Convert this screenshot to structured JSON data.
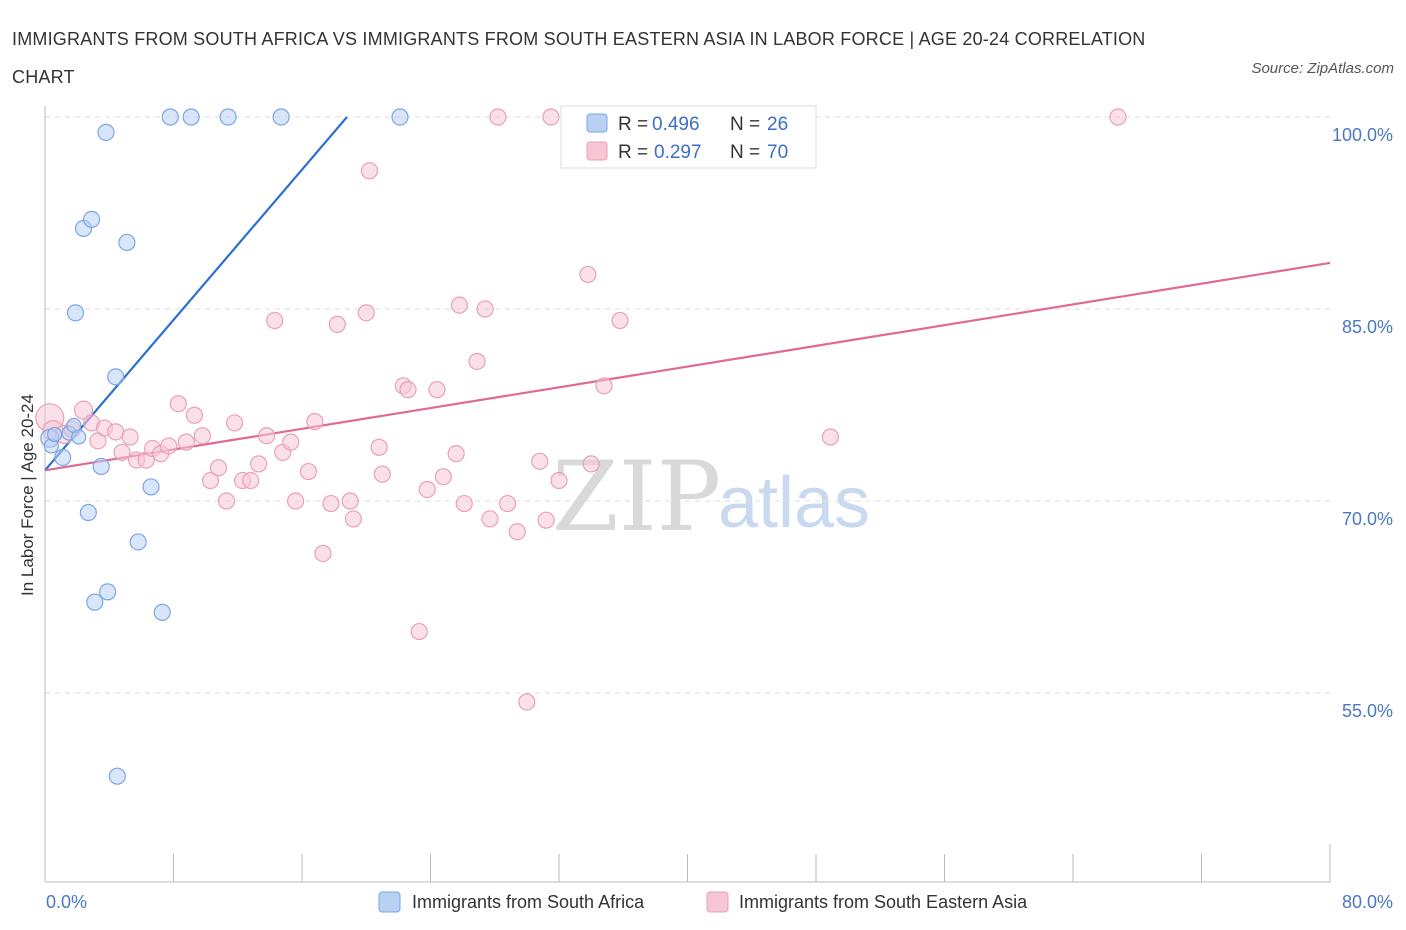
{
  "title": "IMMIGRANTS FROM SOUTH AFRICA VS IMMIGRANTS FROM SOUTH EASTERN ASIA IN LABOR FORCE | AGE 20-24 CORRELATION CHART",
  "source": "Source: ZipAtlas.com",
  "watermark": {
    "zip": "ZIP",
    "atlas": "atlas"
  },
  "chart_data": {
    "type": "scatter",
    "title": "IMMIGRANTS FROM SOUTH AFRICA VS IMMIGRANTS FROM SOUTH EASTERN ASIA IN LABOR FORCE | AGE 20-24 CORRELATION CHART",
    "xlabel": "",
    "ylabel": "In Labor Force | Age 20-24",
    "xlim": [
      0,
      80
    ],
    "ylim": [
      40,
      101
    ],
    "x_tick_labels": [
      {
        "value": 0,
        "label": "0.0%"
      },
      {
        "value": 80,
        "label": "80.0%"
      }
    ],
    "y_ticks": [
      {
        "value": 100,
        "label": "100.0%"
      },
      {
        "value": 85,
        "label": "85.0%"
      },
      {
        "value": 70,
        "label": "70.0%"
      },
      {
        "value": 55,
        "label": "55.0%"
      }
    ],
    "grid": true,
    "legend": {
      "position": "top-center",
      "entries": [
        {
          "r_label": "R = ",
          "r_value": "0.496",
          "n_label": "N = ",
          "n_value": "26"
        },
        {
          "r_label": "R = ",
          "r_value": "0.297",
          "n_label": "N = ",
          "n_value": "70"
        }
      ]
    },
    "series": [
      {
        "name": "Immigrants from South Africa",
        "color": "#7aa6e6",
        "fill": "#b9d0f3",
        "line_color": "#2a6fd1",
        "trend": {
          "x": [
            0.0,
            18.8
          ],
          "y": [
            72.4,
            100.0
          ]
        },
        "points": [
          {
            "x": 0.3,
            "y": 74.9,
            "r": 9
          },
          {
            "x": 0.4,
            "y": 74.3,
            "r": 7
          },
          {
            "x": 0.6,
            "y": 75.2,
            "r": 7
          },
          {
            "x": 1.1,
            "y": 73.4,
            "r": 8
          },
          {
            "x": 1.5,
            "y": 75.3,
            "r": 7
          },
          {
            "x": 1.8,
            "y": 75.9,
            "r": 7
          },
          {
            "x": 2.1,
            "y": 75.0,
            "r": 7
          },
          {
            "x": 1.9,
            "y": 84.7,
            "r": 8
          },
          {
            "x": 2.4,
            "y": 91.3,
            "r": 8
          },
          {
            "x": 2.9,
            "y": 92.0,
            "r": 8
          },
          {
            "x": 3.8,
            "y": 98.8,
            "r": 8
          },
          {
            "x": 5.1,
            "y": 90.2,
            "r": 8
          },
          {
            "x": 4.4,
            "y": 79.7,
            "r": 8
          },
          {
            "x": 3.5,
            "y": 72.7,
            "r": 8
          },
          {
            "x": 2.7,
            "y": 69.1,
            "r": 8
          },
          {
            "x": 6.6,
            "y": 71.1,
            "r": 8
          },
          {
            "x": 5.8,
            "y": 66.8,
            "r": 8
          },
          {
            "x": 3.9,
            "y": 62.9,
            "r": 8
          },
          {
            "x": 3.1,
            "y": 62.1,
            "r": 8
          },
          {
            "x": 7.3,
            "y": 61.3,
            "r": 8
          },
          {
            "x": 4.5,
            "y": 48.5,
            "r": 8
          },
          {
            "x": 7.8,
            "y": 100.0,
            "r": 8
          },
          {
            "x": 9.1,
            "y": 100.0,
            "r": 8
          },
          {
            "x": 11.4,
            "y": 100.0,
            "r": 8
          },
          {
            "x": 14.7,
            "y": 100.0,
            "r": 8
          },
          {
            "x": 22.1,
            "y": 100.0,
            "r": 8
          }
        ]
      },
      {
        "name": "Immigrants from South Eastern Asia",
        "color": "#eaa0b8",
        "fill": "#f6c6d5",
        "line_color": "#e06994",
        "trend": {
          "x": [
            0.0,
            80.0
          ],
          "y": [
            72.4,
            88.6
          ]
        },
        "points": [
          {
            "x": 0.3,
            "y": 76.5,
            "r": 14
          },
          {
            "x": 0.5,
            "y": 75.5,
            "r": 10
          },
          {
            "x": 1.2,
            "y": 75.2,
            "r": 9
          },
          {
            "x": 1.7,
            "y": 75.6,
            "r": 8
          },
          {
            "x": 2.4,
            "y": 77.1,
            "r": 9
          },
          {
            "x": 2.9,
            "y": 76.1,
            "r": 8
          },
          {
            "x": 3.3,
            "y": 74.7,
            "r": 8
          },
          {
            "x": 3.7,
            "y": 75.7,
            "r": 8
          },
          {
            "x": 4.4,
            "y": 75.4,
            "r": 8
          },
          {
            "x": 4.8,
            "y": 73.8,
            "r": 8
          },
          {
            "x": 5.3,
            "y": 75.0,
            "r": 8
          },
          {
            "x": 5.7,
            "y": 73.2,
            "r": 8
          },
          {
            "x": 6.3,
            "y": 73.2,
            "r": 8
          },
          {
            "x": 6.7,
            "y": 74.1,
            "r": 8
          },
          {
            "x": 7.2,
            "y": 73.7,
            "r": 8
          },
          {
            "x": 7.7,
            "y": 74.3,
            "r": 8
          },
          {
            "x": 8.3,
            "y": 77.6,
            "r": 8
          },
          {
            "x": 8.8,
            "y": 74.6,
            "r": 8
          },
          {
            "x": 9.3,
            "y": 76.7,
            "r": 8
          },
          {
            "x": 9.8,
            "y": 75.1,
            "r": 8
          },
          {
            "x": 10.3,
            "y": 71.6,
            "r": 8
          },
          {
            "x": 10.8,
            "y": 72.6,
            "r": 8
          },
          {
            "x": 11.3,
            "y": 70.0,
            "r": 8
          },
          {
            "x": 11.8,
            "y": 76.1,
            "r": 8
          },
          {
            "x": 12.3,
            "y": 71.6,
            "r": 8
          },
          {
            "x": 12.8,
            "y": 71.6,
            "r": 8
          },
          {
            "x": 13.3,
            "y": 72.9,
            "r": 8
          },
          {
            "x": 13.8,
            "y": 75.1,
            "r": 8
          },
          {
            "x": 14.3,
            "y": 84.1,
            "r": 8
          },
          {
            "x": 14.8,
            "y": 73.8,
            "r": 8
          },
          {
            "x": 15.3,
            "y": 74.6,
            "r": 8
          },
          {
            "x": 15.6,
            "y": 70.0,
            "r": 8
          },
          {
            "x": 16.4,
            "y": 72.3,
            "r": 8
          },
          {
            "x": 16.8,
            "y": 76.2,
            "r": 8
          },
          {
            "x": 17.3,
            "y": 65.9,
            "r": 8
          },
          {
            "x": 17.8,
            "y": 69.8,
            "r": 8
          },
          {
            "x": 18.2,
            "y": 83.8,
            "r": 8
          },
          {
            "x": 19.0,
            "y": 70.0,
            "r": 8
          },
          {
            "x": 19.2,
            "y": 68.6,
            "r": 8
          },
          {
            "x": 20.0,
            "y": 84.7,
            "r": 8
          },
          {
            "x": 20.2,
            "y": 95.8,
            "r": 8
          },
          {
            "x": 20.8,
            "y": 74.2,
            "r": 8
          },
          {
            "x": 21.0,
            "y": 72.1,
            "r": 8
          },
          {
            "x": 22.3,
            "y": 79.0,
            "r": 8
          },
          {
            "x": 22.6,
            "y": 78.7,
            "r": 8
          },
          {
            "x": 23.3,
            "y": 59.8,
            "r": 8
          },
          {
            "x": 23.8,
            "y": 70.9,
            "r": 8
          },
          {
            "x": 24.4,
            "y": 78.7,
            "r": 8
          },
          {
            "x": 24.8,
            "y": 71.9,
            "r": 8
          },
          {
            "x": 25.6,
            "y": 73.7,
            "r": 8
          },
          {
            "x": 25.8,
            "y": 85.3,
            "r": 8
          },
          {
            "x": 26.1,
            "y": 69.8,
            "r": 8
          },
          {
            "x": 26.9,
            "y": 80.9,
            "r": 8
          },
          {
            "x": 27.4,
            "y": 85.0,
            "r": 8
          },
          {
            "x": 27.7,
            "y": 68.6,
            "r": 8
          },
          {
            "x": 28.2,
            "y": 100.0,
            "r": 8
          },
          {
            "x": 28.8,
            "y": 69.8,
            "r": 8
          },
          {
            "x": 29.4,
            "y": 67.6,
            "r": 8
          },
          {
            "x": 30.0,
            "y": 54.3,
            "r": 8
          },
          {
            "x": 30.8,
            "y": 73.1,
            "r": 8
          },
          {
            "x": 31.2,
            "y": 68.5,
            "r": 8
          },
          {
            "x": 31.5,
            "y": 100.0,
            "r": 8
          },
          {
            "x": 32.0,
            "y": 71.6,
            "r": 8
          },
          {
            "x": 32.8,
            "y": 100.0,
            "r": 8
          },
          {
            "x": 33.8,
            "y": 87.7,
            "r": 8
          },
          {
            "x": 34.0,
            "y": 72.9,
            "r": 8
          },
          {
            "x": 34.8,
            "y": 79.0,
            "r": 8
          },
          {
            "x": 35.8,
            "y": 84.1,
            "r": 8
          },
          {
            "x": 48.9,
            "y": 75.0,
            "r": 8
          },
          {
            "x": 66.8,
            "y": 100.0,
            "r": 8
          }
        ]
      }
    ]
  },
  "bottom_legend": [
    {
      "label": "Immigrants from South Africa"
    },
    {
      "label": "Immigrants from South Eastern Asia"
    }
  ],
  "colors": {
    "blue_fill": "#b9d0f3",
    "blue_stroke": "#7aa6e6",
    "pink_fill": "#f6c6d5",
    "pink_stroke": "#eaa0b8",
    "axis_text": "#4a78c2",
    "grid": "#dddddd"
  }
}
